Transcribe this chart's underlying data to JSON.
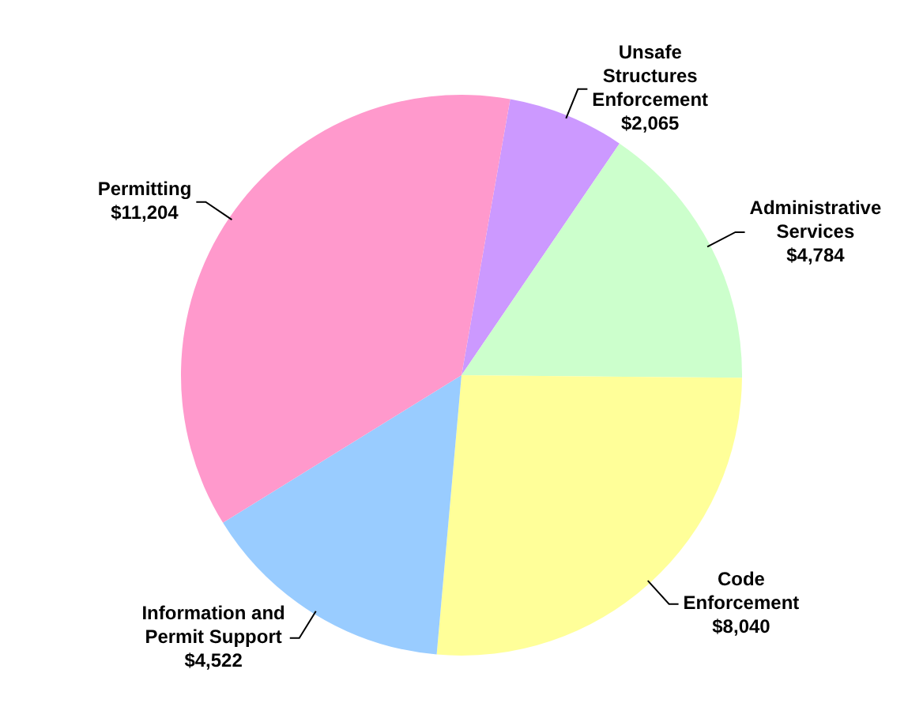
{
  "chart_data": {
    "type": "pie",
    "categories": [
      "Unsafe Structures Enforcement",
      "Administrative Services",
      "Code Enforcement",
      "Information and Permit Support",
      "Permitting"
    ],
    "values": [
      2065,
      4784,
      8040,
      4522,
      11204
    ],
    "value_labels": [
      "$2,065",
      "$4,784",
      "$8,040",
      "$4,522",
      "$11,204"
    ],
    "colors": [
      "#cc99ff",
      "#ccffcc",
      "#ffff99",
      "#99ccff",
      "#ff99cc"
    ],
    "legend": false
  }
}
